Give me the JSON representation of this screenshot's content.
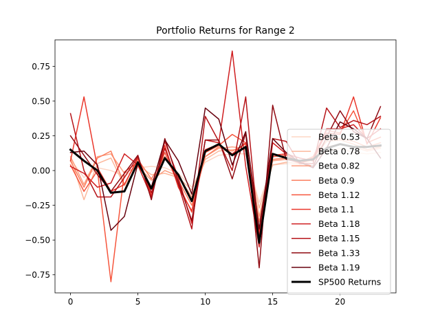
{
  "chart_data": {
    "type": "line",
    "title": "Portfolio Returns for Range 2",
    "xlabel": "",
    "ylabel": "",
    "xlim": [
      -1.15,
      24.15
    ],
    "ylim": [
      -0.88,
      0.94
    ],
    "xticks": [
      0,
      5,
      10,
      15,
      20
    ],
    "yticks": [
      -0.75,
      -0.5,
      -0.25,
      0.0,
      0.25,
      0.5,
      0.75
    ],
    "ytick_labels": [
      "−0.75",
      "−0.50",
      "−0.25",
      "0.00",
      "0.25",
      "0.50",
      "0.75"
    ],
    "grid": false,
    "legend_position": "lower-right",
    "x": [
      0,
      1,
      2,
      3,
      4,
      5,
      6,
      7,
      8,
      9,
      10,
      11,
      12,
      13,
      14,
      15,
      16,
      17,
      18,
      19,
      20,
      21,
      22,
      23
    ],
    "series": [
      {
        "name": "Beta 0.53",
        "color": "#fdd5c4",
        "width": 1.5,
        "values": [
          0.08,
          -0.05,
          0.02,
          0.0,
          -0.04,
          0.02,
          0.03,
          0.02,
          -0.02,
          -0.12,
          0.06,
          0.11,
          0.12,
          0.12,
          -0.23,
          0.04,
          0.05,
          0.04,
          0.07,
          0.14,
          0.16,
          0.13,
          0.12,
          0.13
        ]
      },
      {
        "name": "Beta 0.78",
        "color": "#fcb89c",
        "width": 1.5,
        "values": [
          0.09,
          -0.21,
          0.05,
          0.09,
          -0.11,
          0.04,
          -0.03,
          -0.02,
          -0.05,
          -0.14,
          0.08,
          0.14,
          0.15,
          0.15,
          -0.27,
          0.04,
          0.06,
          0.05,
          0.08,
          0.17,
          0.19,
          0.17,
          0.14,
          0.16
        ]
      },
      {
        "name": "Beta 0.82",
        "color": "#fc9e7f",
        "width": 1.5,
        "values": [
          0.1,
          -0.1,
          0.1,
          0.12,
          -0.02,
          0.03,
          -0.07,
          0.0,
          -0.04,
          -0.19,
          0.1,
          0.16,
          0.17,
          0.16,
          -0.33,
          0.07,
          0.08,
          0.06,
          0.09,
          0.21,
          0.22,
          0.19,
          0.15,
          0.17
        ]
      },
      {
        "name": "Beta 0.9",
        "color": "#fb7f5f",
        "width": 1.5,
        "values": [
          0.07,
          -0.12,
          0.09,
          0.14,
          -0.1,
          0.08,
          -0.06,
          0.1,
          -0.07,
          -0.25,
          0.1,
          0.17,
          0.14,
          0.19,
          -0.37,
          0.08,
          0.09,
          0.05,
          0.08,
          0.23,
          0.23,
          0.21,
          0.17,
          0.2
        ]
      },
      {
        "name": "Beta 1.12",
        "color": "#f6553c",
        "width": 1.5,
        "values": [
          0.04,
          -0.15,
          0.0,
          -0.8,
          -0.01,
          0.06,
          -0.12,
          0.13,
          -0.1,
          -0.3,
          0.13,
          0.18,
          0.26,
          0.2,
          -0.46,
          0.1,
          0.11,
          0.06,
          0.1,
          0.29,
          0.27,
          0.43,
          0.2,
          0.24
        ]
      },
      {
        "name": "Beta 1.1",
        "color": "#ea362a",
        "width": 1.5,
        "values": [
          0.07,
          0.53,
          0.02,
          -0.15,
          -0.1,
          0.09,
          -0.18,
          0.18,
          -0.12,
          -0.29,
          0.15,
          0.19,
          0.12,
          0.2,
          -0.43,
          0.11,
          0.12,
          0.05,
          0.09,
          0.27,
          0.26,
          0.53,
          0.19,
          0.38
        ]
      },
      {
        "name": "Beta 1.18",
        "color": "#cf1d1f",
        "width": 1.5,
        "values": [
          0.03,
          -0.02,
          -0.12,
          -0.09,
          0.12,
          0.04,
          -0.19,
          0.21,
          -0.05,
          -0.38,
          0.22,
          0.2,
          0.86,
          0.03,
          -0.55,
          0.2,
          0.12,
          0.09,
          0.07,
          0.3,
          0.3,
          0.33,
          0.23,
          0.3
        ]
      },
      {
        "name": "Beta 1.15",
        "color": "#b61318",
        "width": 1.5,
        "values": [
          0.41,
          0.0,
          -0.19,
          -0.19,
          -0.05,
          0.1,
          -0.16,
          0.16,
          -0.1,
          -0.42,
          0.39,
          0.21,
          0.0,
          0.53,
          -0.49,
          0.23,
          0.21,
          0.05,
          0.05,
          0.45,
          0.31,
          0.36,
          0.33,
          0.39
        ]
      },
      {
        "name": "Beta 1.33",
        "color": "#900a12",
        "width": 1.5,
        "values": [
          0.25,
          0.11,
          -0.03,
          -0.15,
          -0.02,
          0.11,
          -0.21,
          0.23,
          -0.08,
          -0.36,
          0.22,
          0.22,
          -0.06,
          0.27,
          -0.7,
          0.47,
          0.08,
          0.06,
          0.03,
          0.24,
          0.43,
          0.28,
          0.23,
          0.46
        ]
      },
      {
        "name": "Beta 1.19",
        "color": "#67000d",
        "width": 1.5,
        "values": [
          0.13,
          0.14,
          0.04,
          -0.43,
          -0.33,
          0.05,
          -0.12,
          0.22,
          0.07,
          -0.17,
          0.45,
          0.37,
          0.04,
          0.28,
          -0.42,
          0.23,
          0.13,
          0.06,
          0.02,
          0.16,
          0.35,
          0.3,
          0.23,
          0.09
        ]
      },
      {
        "name": "SP500 Returns",
        "color": "#000000",
        "width": 3,
        "values": [
          0.15,
          0.07,
          0.0,
          -0.16,
          -0.15,
          0.06,
          -0.13,
          0.09,
          -0.03,
          -0.22,
          0.14,
          0.19,
          0.11,
          0.17,
          -0.52,
          0.12,
          0.09,
          0.07,
          0.08,
          0.16,
          0.19,
          0.17,
          0.17,
          0.18
        ]
      }
    ]
  }
}
